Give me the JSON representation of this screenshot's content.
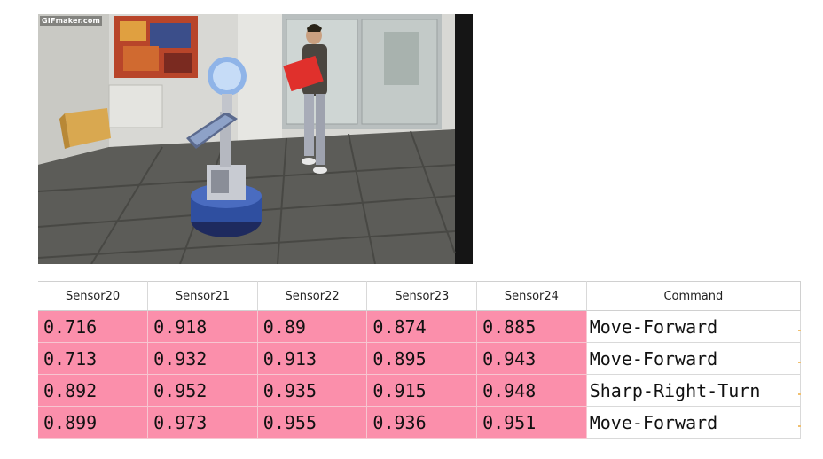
{
  "photo": {
    "watermark": "GIFmaker.com"
  },
  "table": {
    "headers": [
      "Sensor20",
      "Sensor21",
      "Sensor22",
      "Sensor23",
      "Sensor24",
      "Command"
    ],
    "rows": [
      [
        "0.716",
        "0.918",
        "0.89",
        "0.874",
        "0.885",
        "Move-Forward"
      ],
      [
        "0.713",
        "0.932",
        "0.913",
        "0.895",
        "0.943",
        "Move-Forward"
      ],
      [
        "0.892",
        "0.952",
        "0.935",
        "0.915",
        "0.948",
        "Sharp-Right-Turn"
      ],
      [
        "0.899",
        "0.973",
        "0.955",
        "0.936",
        "0.951",
        "Move-Forward"
      ]
    ]
  },
  "colors": {
    "sensor_cell_bg": "#fb8fab",
    "command_cell_bg": "#ffffff"
  }
}
